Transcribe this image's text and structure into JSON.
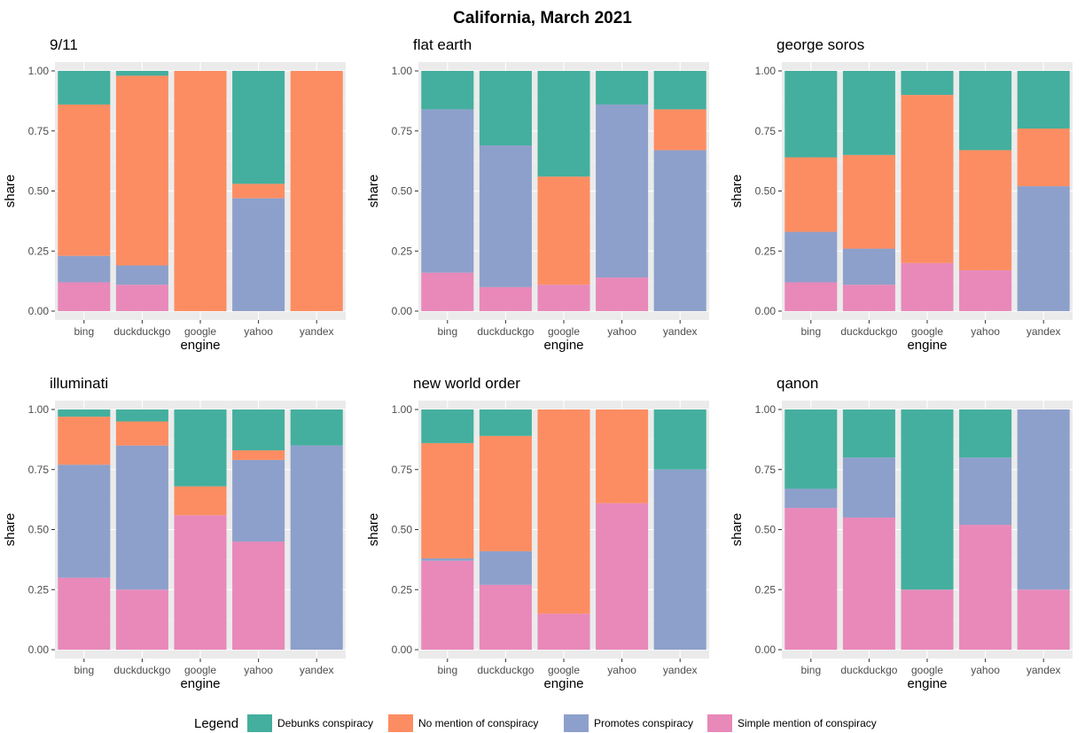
{
  "chart_data": {
    "type": "bar",
    "stacked": true,
    "title": "California, March 2021",
    "xlabel": "engine",
    "ylabel": "share",
    "ylim": [
      0,
      1
    ],
    "yticks": [
      "0.00",
      "0.25",
      "0.50",
      "0.75",
      "1.00"
    ],
    "grid": true,
    "legend": {
      "title": "Legend",
      "placement": "bottom",
      "entries": [
        {
          "name": "Debunks conspiracy",
          "color": "#44af9e"
        },
        {
          "name": "No mention of conspiracy",
          "color": "#fc8d62"
        },
        {
          "name": "Promotes conspiracy",
          "color": "#8da0cb"
        },
        {
          "name": "Simple mention of conspiracy",
          "color": "#e889ba"
        }
      ]
    },
    "stack_order": [
      "Simple mention of conspiracy",
      "Promotes conspiracy",
      "No mention of conspiracy",
      "Debunks conspiracy"
    ],
    "categories": [
      "bing",
      "duckduckgo",
      "google",
      "yahoo",
      "yandex"
    ],
    "panels": [
      {
        "title": "9/11",
        "series": [
          {
            "name": "Simple mention of conspiracy",
            "values": [
              0.12,
              0.11,
              0.0,
              0.0,
              0.0
            ]
          },
          {
            "name": "Promotes conspiracy",
            "values": [
              0.11,
              0.08,
              0.0,
              0.47,
              0.0
            ]
          },
          {
            "name": "No mention of conspiracy",
            "values": [
              0.63,
              0.79,
              1.0,
              0.06,
              1.0
            ]
          },
          {
            "name": "Debunks conspiracy",
            "values": [
              0.14,
              0.02,
              0.0,
              0.47,
              0.0
            ]
          }
        ]
      },
      {
        "title": "flat earth",
        "series": [
          {
            "name": "Simple mention of conspiracy",
            "values": [
              0.16,
              0.1,
              0.11,
              0.14,
              0.0
            ]
          },
          {
            "name": "Promotes conspiracy",
            "values": [
              0.68,
              0.59,
              0.0,
              0.72,
              0.67
            ]
          },
          {
            "name": "No mention of conspiracy",
            "values": [
              0.0,
              0.0,
              0.45,
              0.0,
              0.17
            ]
          },
          {
            "name": "Debunks conspiracy",
            "values": [
              0.16,
              0.31,
              0.44,
              0.14,
              0.16
            ]
          }
        ]
      },
      {
        "title": "george soros",
        "series": [
          {
            "name": "Simple mention of conspiracy",
            "values": [
              0.12,
              0.11,
              0.2,
              0.17,
              0.0
            ]
          },
          {
            "name": "Promotes conspiracy",
            "values": [
              0.21,
              0.15,
              0.0,
              0.0,
              0.52
            ]
          },
          {
            "name": "No mention of conspiracy",
            "values": [
              0.31,
              0.39,
              0.7,
              0.5,
              0.24
            ]
          },
          {
            "name": "Debunks conspiracy",
            "values": [
              0.36,
              0.35,
              0.1,
              0.33,
              0.24
            ]
          }
        ]
      },
      {
        "title": "illuminati",
        "series": [
          {
            "name": "Simple mention of conspiracy",
            "values": [
              0.3,
              0.25,
              0.56,
              0.45,
              0.0
            ]
          },
          {
            "name": "Promotes conspiracy",
            "values": [
              0.47,
              0.6,
              0.0,
              0.34,
              0.85
            ]
          },
          {
            "name": "No mention of conspiracy",
            "values": [
              0.2,
              0.1,
              0.12,
              0.04,
              0.0
            ]
          },
          {
            "name": "Debunks conspiracy",
            "values": [
              0.03,
              0.05,
              0.32,
              0.17,
              0.15
            ]
          }
        ]
      },
      {
        "title": "new world order",
        "series": [
          {
            "name": "Simple mention of conspiracy",
            "values": [
              0.37,
              0.27,
              0.15,
              0.61,
              0.0
            ]
          },
          {
            "name": "Promotes conspiracy",
            "values": [
              0.01,
              0.14,
              0.0,
              0.0,
              0.75
            ]
          },
          {
            "name": "No mention of conspiracy",
            "values": [
              0.48,
              0.48,
              0.85,
              0.39,
              0.0
            ]
          },
          {
            "name": "Debunks conspiracy",
            "values": [
              0.14,
              0.11,
              0.0,
              0.0,
              0.25
            ]
          }
        ]
      },
      {
        "title": "qanon",
        "series": [
          {
            "name": "Simple mention of conspiracy",
            "values": [
              0.59,
              0.55,
              0.25,
              0.52,
              0.25
            ]
          },
          {
            "name": "Promotes conspiracy",
            "values": [
              0.08,
              0.25,
              0.0,
              0.28,
              0.75
            ]
          },
          {
            "name": "No mention of conspiracy",
            "values": [
              0.0,
              0.0,
              0.0,
              0.0,
              0.0
            ]
          },
          {
            "name": "Debunks conspiracy",
            "values": [
              0.33,
              0.2,
              0.75,
              0.2,
              0.0
            ]
          }
        ]
      }
    ]
  }
}
